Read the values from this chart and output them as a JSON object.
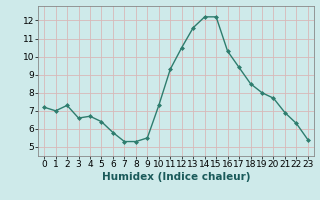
{
  "x": [
    0,
    1,
    2,
    3,
    4,
    5,
    6,
    7,
    8,
    9,
    10,
    11,
    12,
    13,
    14,
    15,
    16,
    17,
    18,
    19,
    20,
    21,
    22,
    23
  ],
  "y": [
    7.2,
    7.0,
    7.3,
    6.6,
    6.7,
    6.4,
    5.8,
    5.3,
    5.3,
    5.5,
    7.3,
    9.3,
    10.5,
    11.6,
    12.2,
    12.2,
    10.3,
    9.4,
    8.5,
    8.0,
    7.7,
    6.9,
    6.3,
    5.4
  ],
  "line_color": "#2e7d6e",
  "marker": "D",
  "marker_size": 2.0,
  "line_width": 1.0,
  "xlabel": "Humidex (Indice chaleur)",
  "xlim": [
    -0.5,
    23.5
  ],
  "ylim": [
    4.5,
    12.8
  ],
  "yticks": [
    5,
    6,
    7,
    8,
    9,
    10,
    11,
    12
  ],
  "xticks": [
    0,
    1,
    2,
    3,
    4,
    5,
    6,
    7,
    8,
    9,
    10,
    11,
    12,
    13,
    14,
    15,
    16,
    17,
    18,
    19,
    20,
    21,
    22,
    23
  ],
  "bg_color": "#ceeaea",
  "grid_color": "#e8f8f8",
  "tick_label_size": 6.5,
  "xlabel_size": 7.5
}
